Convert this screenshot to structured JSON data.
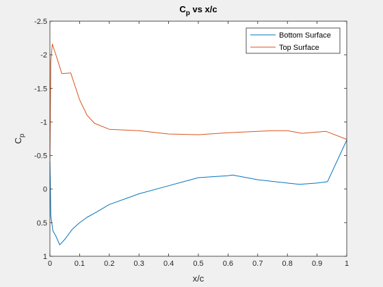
{
  "chart_data": {
    "type": "line",
    "title_main": "C",
    "title_sub": "p",
    "title_rest": " vs x/c",
    "xlabel": "x/c",
    "ylabel_main": "C",
    "ylabel_sub": "p",
    "xlim": [
      0,
      1
    ],
    "ylim": [
      1,
      -2.5
    ],
    "y_reversed": true,
    "grid": false,
    "legend_position": "top-right",
    "x_ticks": [
      0,
      0.1,
      0.2,
      0.3,
      0.4,
      0.5,
      0.6,
      0.7,
      0.8,
      0.9,
      1
    ],
    "x_tick_labels": [
      "0",
      "0.1",
      "0.2",
      "0.3",
      "0.4",
      "0.5",
      "0.6",
      "0.7",
      "0.8",
      "0.9",
      "1"
    ],
    "y_ticks": [
      -2.5,
      -2,
      -1.5,
      -1,
      -0.5,
      0,
      0.5,
      1
    ],
    "y_tick_labels": [
      "-2.5",
      "-2",
      "-1.5",
      "-1",
      "-0.5",
      "0",
      "0.5",
      "1"
    ],
    "series": [
      {
        "name": "Bottom Surface",
        "color": "#0072bd",
        "x": [
          0,
          0.0015,
          0.003,
          0.01,
          0.02,
          0.033,
          0.05,
          0.075,
          0.1,
          0.125,
          0.15,
          0.2,
          0.3,
          0.4,
          0.5,
          0.6,
          0.615,
          0.7,
          0.8,
          0.84,
          0.9,
          0.935,
          1
        ],
        "y": [
          -0.42,
          0.0,
          0.4,
          0.62,
          0.7,
          0.83,
          0.75,
          0.6,
          0.5,
          0.42,
          0.36,
          0.23,
          0.07,
          -0.05,
          -0.17,
          -0.2,
          -0.21,
          -0.14,
          -0.09,
          -0.07,
          -0.09,
          -0.11,
          -0.73
        ]
      },
      {
        "name": "Top Surface",
        "color": "#d95319",
        "x": [
          0,
          0.003,
          0.008,
          0.02,
          0.04,
          0.07,
          0.1,
          0.125,
          0.15,
          0.2,
          0.3,
          0.4,
          0.5,
          0.6,
          0.7,
          0.75,
          0.8,
          0.85,
          0.9,
          0.93,
          1
        ],
        "y": [
          -0.45,
          -1.9,
          -2.16,
          -2.0,
          -1.72,
          -1.73,
          -1.33,
          -1.1,
          -0.98,
          -0.89,
          -0.87,
          -0.82,
          -0.81,
          -0.84,
          -0.86,
          -0.87,
          -0.87,
          -0.83,
          -0.85,
          -0.86,
          -0.74
        ]
      }
    ]
  }
}
